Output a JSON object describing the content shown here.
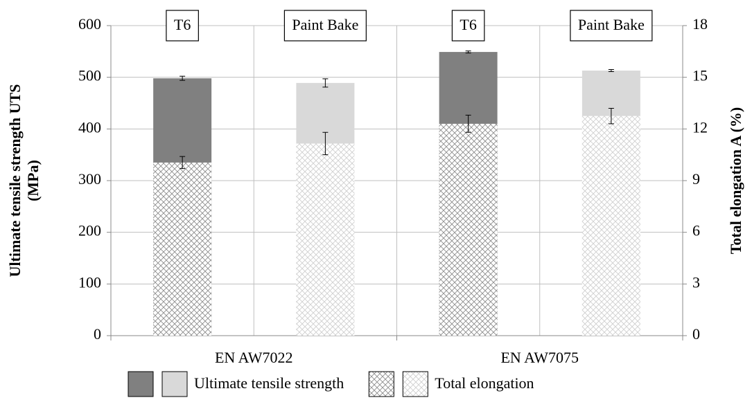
{
  "chart_data": {
    "type": "bar",
    "groups": [
      "EN AW7022",
      "EN AW7075"
    ],
    "categories": [
      "T6",
      "Paint Bake",
      "T6",
      "Paint Bake"
    ],
    "ylabel": [
      "Ultimate tensile strength UTS",
      "(MPa)"
    ],
    "y2label": "Total elongation A (%)",
    "ylim": [
      0,
      600
    ],
    "yticks": [
      0,
      100,
      200,
      300,
      400,
      500,
      600
    ],
    "y2lim": [
      0,
      18
    ],
    "y2ticks": [
      0,
      3,
      6,
      9,
      12,
      15,
      18
    ],
    "grid": true,
    "series": [
      {
        "name": "Ultimate tensile strength",
        "colors": [
          "#808080",
          "#d9d9d9",
          "#808080",
          "#d9d9d9"
        ],
        "values": [
          498,
          489,
          549,
          513
        ],
        "errors": [
          4,
          8,
          2,
          2
        ]
      },
      {
        "name": "Total elongation",
        "axis": "y2",
        "colors": [
          "#8c8c8c",
          "#cfcfcf",
          "#8c8c8c",
          "#cfcfcf"
        ],
        "values": [
          10.05,
          11.15,
          12.3,
          12.75
        ],
        "errors": [
          0.35,
          0.65,
          0.5,
          0.45
        ]
      }
    ]
  }
}
